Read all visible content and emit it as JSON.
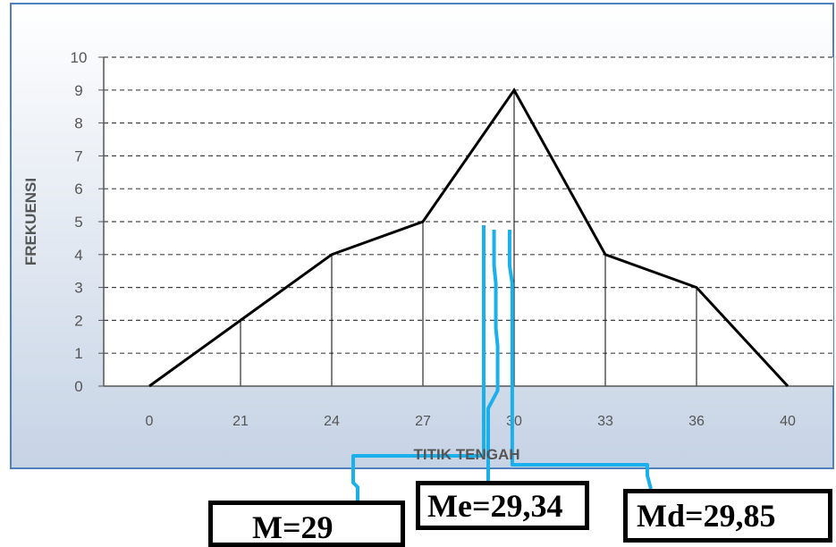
{
  "chart_data": {
    "type": "line",
    "title": "",
    "xlabel": "TITIK TENGAH",
    "ylabel": "FREKUENSI",
    "categories": [
      "0",
      "21",
      "24",
      "27",
      "30",
      "33",
      "36",
      "40"
    ],
    "values": [
      0,
      2,
      4,
      5,
      9,
      4,
      3,
      0
    ],
    "yticks": [
      "0",
      "1",
      "2",
      "3",
      "4",
      "5",
      "6",
      "7",
      "8",
      "9",
      "10"
    ],
    "ylim": [
      0,
      10
    ],
    "grid": "horizontal-dashed",
    "drop_lines": true,
    "annotations": [
      {
        "id": "mean",
        "label": "M=29",
        "x": 29
      },
      {
        "id": "median",
        "label": "Me=29,34",
        "x": 29.34
      },
      {
        "id": "mode",
        "label": "Md=29,85",
        "x": 29.85
      }
    ],
    "colors": {
      "plot_bg": "#ffffff",
      "frame_bg_top": "#ffffff",
      "frame_bg_bottom": "#c7d4e6",
      "frame_border": "#4f81bd",
      "series_line": "#000000",
      "marker_line": "#1ab0ec",
      "grid": "#444444",
      "tick_text": "#555555"
    }
  }
}
